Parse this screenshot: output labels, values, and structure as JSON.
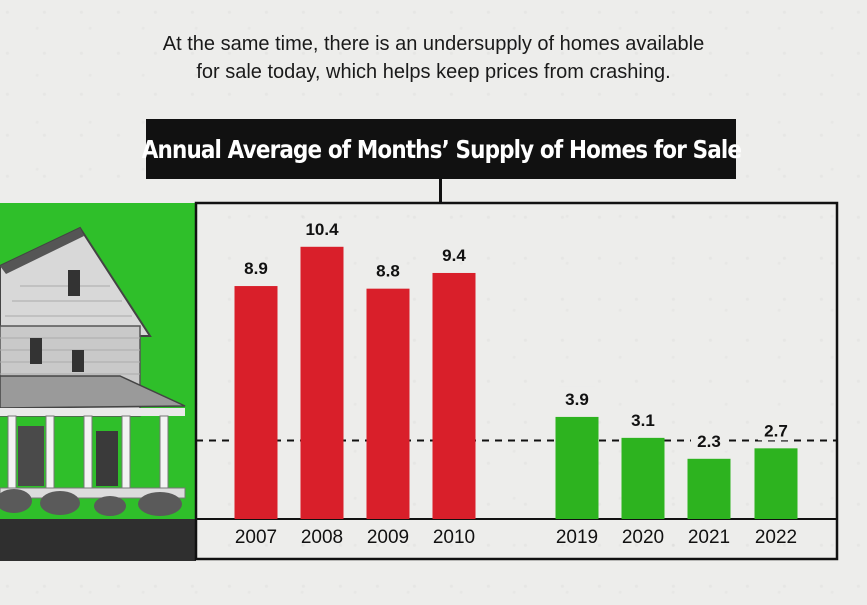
{
  "subtitle": {
    "line1": "At the same time, there is an undersupply of  homes available",
    "line2": "for sale today, which helps keep prices from crashing."
  },
  "colors": {
    "past_bars": "#d91f2a",
    "recent_bars": "#2db31f",
    "green_block": "#2fbf2a",
    "title_bg": "#111111"
  },
  "illustration": {
    "icon": "house-photo-icon"
  },
  "chart_data": {
    "type": "bar",
    "title": "Annual Average of Months’ Supply of Homes for Sale",
    "categories": [
      "2007",
      "2008",
      "2009",
      "2010",
      "2019",
      "2020",
      "2021",
      "2022"
    ],
    "values": [
      8.9,
      10.4,
      8.8,
      9.4,
      3.9,
      3.1,
      2.3,
      2.7
    ],
    "labels": [
      "8.9",
      "10.4",
      "8.8",
      "9.4",
      "3.9",
      "3.1",
      "2.3",
      "2.7"
    ],
    "bar_colors": [
      "#d91f2a",
      "#d91f2a",
      "#d91f2a",
      "#d91f2a",
      "#2db31f",
      "#2db31f",
      "#2db31f",
      "#2db31f"
    ],
    "reference_line": 3.0,
    "ylim": [
      0,
      11.5
    ],
    "grid": false,
    "xlabel": "",
    "ylabel": ""
  }
}
